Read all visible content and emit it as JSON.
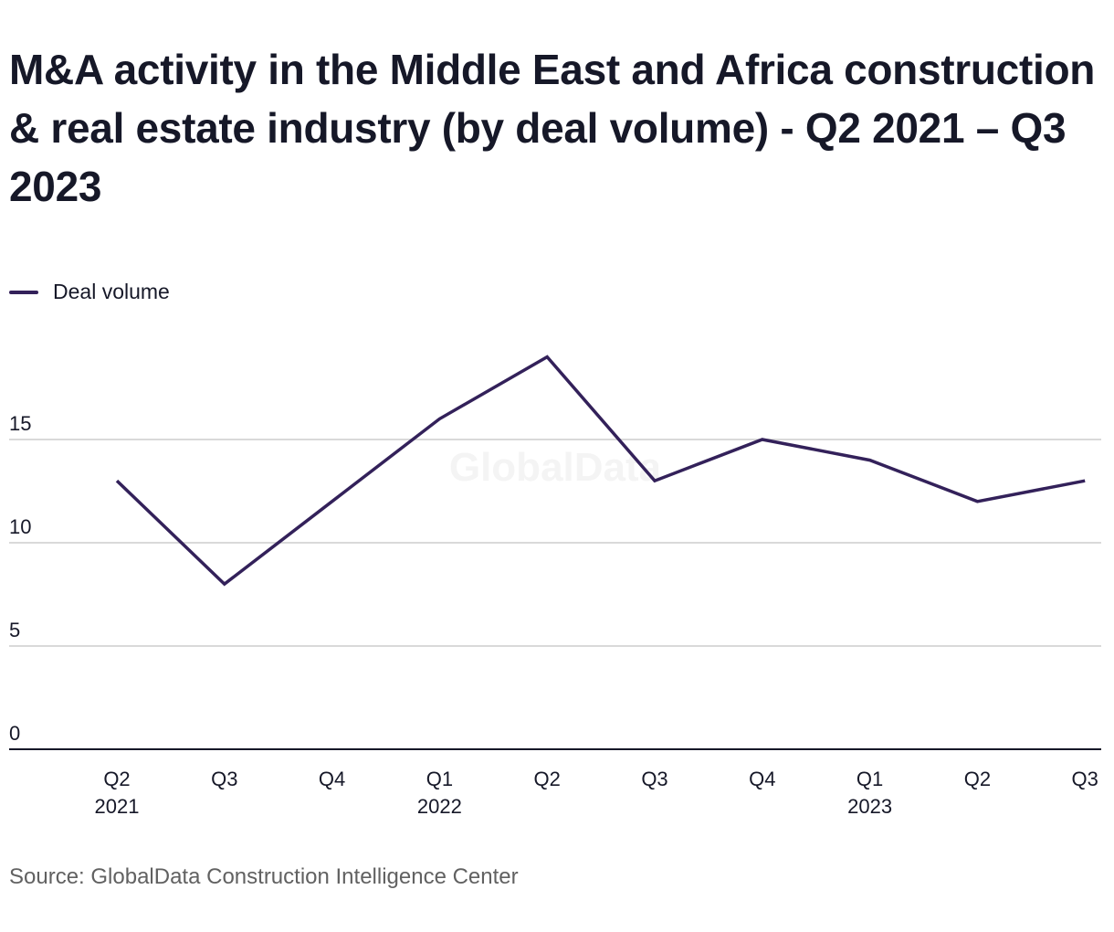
{
  "title": "M&A activity in the Middle East and Africa construction & real estate industry (by deal volume) - Q2 2021 – Q3 2023",
  "source": "Source: GlobalData Construction Intelligence Center",
  "watermark": "GlobalData",
  "colors": {
    "line": "#33215a",
    "grid": "#d9d9d9",
    "axis": "#161828",
    "text": "#161828",
    "source": "#616161"
  },
  "chart_data": {
    "type": "line",
    "title": "M&A activity in the Middle East and Africa construction & real estate industry (by deal volume) - Q2 2021 – Q3 2023",
    "xlabel": "",
    "ylabel": "",
    "ylim": [
      0,
      20
    ],
    "yticks": [
      0,
      5,
      10,
      15
    ],
    "grid": true,
    "legend_position": "top-left",
    "categories": [
      {
        "q": "Q2",
        "year": "2021"
      },
      {
        "q": "Q3",
        "year": ""
      },
      {
        "q": "Q4",
        "year": ""
      },
      {
        "q": "Q1",
        "year": "2022"
      },
      {
        "q": "Q2",
        "year": ""
      },
      {
        "q": "Q3",
        "year": ""
      },
      {
        "q": "Q4",
        "year": ""
      },
      {
        "q": "Q1",
        "year": "2023"
      },
      {
        "q": "Q2",
        "year": ""
      },
      {
        "q": "Q3",
        "year": ""
      }
    ],
    "series": [
      {
        "name": "Deal volume",
        "values": [
          13,
          8,
          12,
          16,
          19,
          13,
          15,
          14,
          12,
          13
        ]
      }
    ]
  }
}
